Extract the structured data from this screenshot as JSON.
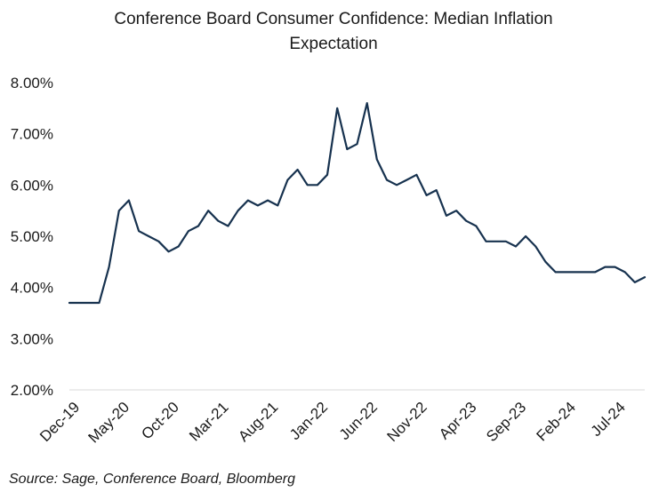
{
  "chart_data": {
    "type": "line",
    "title": "Conference Board Consumer Confidence: Median Inflation Expectation",
    "title_lines": [
      "Conference Board Consumer Confidence: Median Inflation",
      "Expectation"
    ],
    "source": "Source: Sage, Conference Board, Bloomberg",
    "xlabel": "",
    "ylabel": "",
    "ylim": [
      2.0,
      8.0
    ],
    "yticks": [
      2.0,
      3.0,
      4.0,
      5.0,
      6.0,
      7.0,
      8.0
    ],
    "ytick_labels": [
      "2.00%",
      "3.00%",
      "4.00%",
      "5.00%",
      "6.00%",
      "7.00%",
      "8.00%"
    ],
    "xtick_labels": [
      "Dec-19",
      "May-20",
      "Oct-20",
      "Mar-21",
      "Aug-21",
      "Jan-22",
      "Jun-22",
      "Nov-22",
      "Apr-23",
      "Sep-23",
      "Feb-24",
      "Jul-24"
    ],
    "xtick_every": 5,
    "line_color": "#17324f",
    "grid": false,
    "series": [
      {
        "name": "Median Inflation Expectation",
        "start": "Dec-19",
        "values": [
          3.7,
          3.7,
          3.7,
          3.7,
          4.4,
          5.5,
          5.7,
          5.1,
          5.0,
          4.9,
          4.7,
          4.8,
          5.1,
          5.2,
          5.5,
          5.3,
          5.2,
          5.5,
          5.7,
          5.6,
          5.7,
          5.6,
          6.1,
          6.3,
          6.0,
          6.0,
          6.2,
          7.5,
          6.7,
          6.8,
          7.6,
          6.5,
          6.1,
          6.0,
          6.1,
          6.2,
          5.8,
          5.9,
          5.4,
          5.5,
          5.3,
          5.2,
          4.9,
          4.9,
          4.9,
          4.8,
          5.0,
          4.8,
          4.5,
          4.3,
          4.3,
          4.3,
          4.3,
          4.3,
          4.4,
          4.4,
          4.3,
          4.1,
          4.2
        ]
      }
    ]
  }
}
